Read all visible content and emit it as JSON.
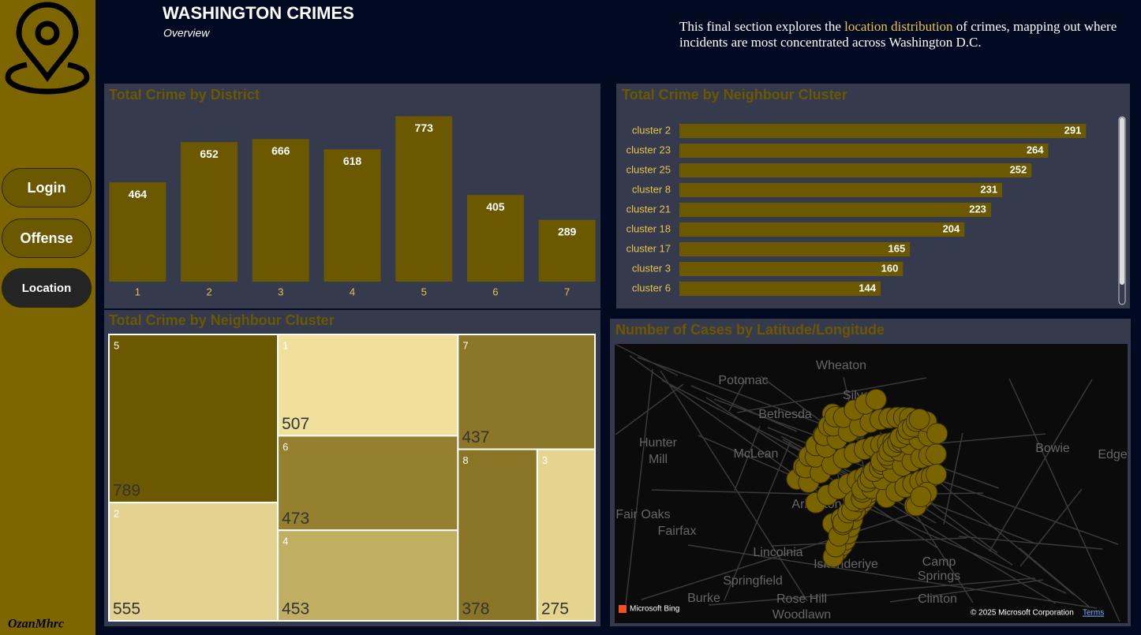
{
  "header": {
    "title": "WASHINGTON CRIMES",
    "subtitle": "Overview",
    "description": [
      "This final section explores the",
      "location distribution",
      "of crimes, mapping out where incidents are most concentrated across Washington D.C."
    ]
  },
  "nav": [
    "Login",
    "Offense",
    "Location"
  ],
  "author": "OzanMhrc",
  "chart_data": [
    {
      "type": "bar",
      "title": "Total Crime by District",
      "categories": [
        "1",
        "2",
        "3",
        "4",
        "5",
        "6",
        "7"
      ],
      "values": [
        464,
        652,
        666,
        618,
        773,
        405,
        289
      ],
      "color": "#6b5800",
      "ylim": [
        0,
        800
      ]
    },
    {
      "type": "hbar",
      "title": "Total Crime by Neighbour Cluster",
      "categories": [
        "cluster 2",
        "cluster 23",
        "cluster 25",
        "cluster 8",
        "cluster 21",
        "cluster 18",
        "cluster 17",
        "cluster 3",
        "cluster 6"
      ],
      "values": [
        291,
        264,
        252,
        231,
        223,
        204,
        165,
        160,
        144
      ],
      "color": "#6b5800",
      "xlim": [
        0,
        310
      ]
    },
    {
      "type": "treemap",
      "title": "Total Crime by Neighbour Cluster",
      "categories": [
        "5",
        "2",
        "1",
        "6",
        "4",
        "7",
        "8",
        "3"
      ],
      "values": [
        789,
        555,
        507,
        473,
        453,
        437,
        378,
        275
      ],
      "colors": [
        "#6b5800",
        "#e4d390",
        "#efe09b",
        "#94802e",
        "#c0ae63",
        "#8c7627",
        "#8a7425",
        "#e5d48d"
      ]
    },
    {
      "type": "map",
      "title": "Number of Cases by Latitude/Longitude",
      "labels": [
        "Wheaton",
        "Potomac",
        "Bethesda",
        "Silver",
        "Hunter",
        "Mill",
        "McLean",
        "Arlington",
        "Fair Oaks",
        "Fairfax",
        "Lincolnia",
        "Iskenderiye",
        "Springfield",
        "Burke",
        "Rose Hill",
        "Woodlawn",
        "Camp",
        "Springs",
        "Clinton",
        "Bowie",
        "Edge"
      ],
      "attribution": [
        "Microsoft Bing",
        "© 2025 Microsoft Corporation",
        "Terms"
      ]
    }
  ]
}
